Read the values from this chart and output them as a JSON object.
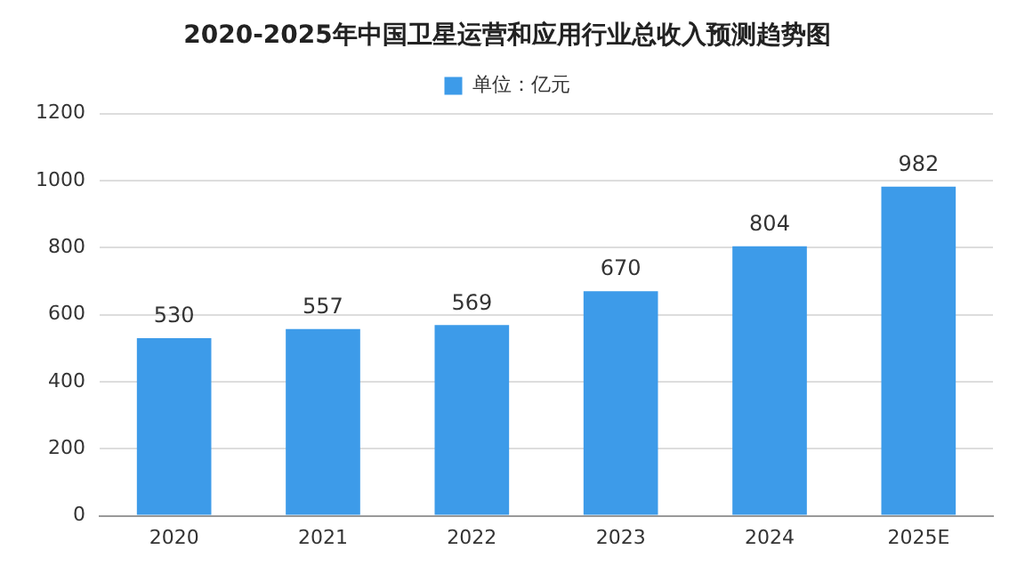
{
  "chart_data": {
    "type": "bar",
    "title": "2020-2025年中国卫星运营和应用行业总收入预测趋势图",
    "categories": [
      "2020",
      "2021",
      "2022",
      "2023",
      "2024",
      "2025E"
    ],
    "series": [
      {
        "name": "单位：亿元",
        "color": "#3d9be9",
        "values": [
          530,
          557,
          569,
          670,
          804,
          982
        ]
      }
    ],
    "ylim": [
      0,
      1200
    ],
    "yticks": [
      0,
      200,
      400,
      600,
      800,
      1000,
      1200
    ],
    "grid": "y",
    "legend": "top",
    "data_labels": true
  }
}
